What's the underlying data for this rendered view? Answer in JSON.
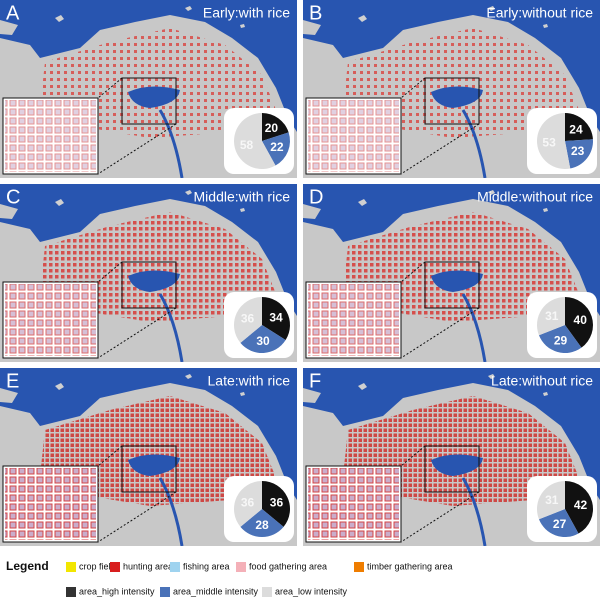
{
  "chart_data": [
    {
      "type": "pie",
      "panel": "A",
      "title": "Early:with rice",
      "values": [
        20,
        22,
        58
      ],
      "colors": [
        "#111111",
        "#4a72b8",
        "#dcdcdc"
      ],
      "density": 0
    },
    {
      "type": "pie",
      "panel": "B",
      "title": "Early:without rice",
      "values": [
        24,
        23,
        53
      ],
      "colors": [
        "#111111",
        "#4a72b8",
        "#dcdcdc"
      ],
      "density": 0
    },
    {
      "type": "pie",
      "panel": "C",
      "title": "Middle:with rice",
      "values": [
        34,
        30,
        36
      ],
      "colors": [
        "#111111",
        "#4a72b8",
        "#dcdcdc"
      ],
      "density": 1
    },
    {
      "type": "pie",
      "panel": "D",
      "title": "Middle:without rice",
      "values": [
        40,
        29,
        31
      ],
      "colors": [
        "#111111",
        "#4a72b8",
        "#dcdcdc"
      ],
      "density": 1
    },
    {
      "type": "pie",
      "panel": "E",
      "title": "Late:with rice",
      "values": [
        36,
        28,
        36
      ],
      "colors": [
        "#111111",
        "#4a72b8",
        "#dcdcdc"
      ],
      "density": 2
    },
    {
      "type": "pie",
      "panel": "F",
      "title": "Late:without rice",
      "values": [
        42,
        27,
        31
      ],
      "colors": [
        "#111111",
        "#4a72b8",
        "#dcdcdc"
      ],
      "density": 2
    }
  ],
  "legend": {
    "title": "Legend",
    "items": [
      {
        "label": "crop field",
        "color": "#f2e600"
      },
      {
        "label": "hunting area",
        "color": "#d81e1e"
      },
      {
        "label": "fishing area",
        "color": "#9fd3ef"
      },
      {
        "label": "food gathering area",
        "color": "#f4b0b8"
      },
      {
        "label": "timber gathering area",
        "color": "#ef7d00"
      },
      {
        "label": "area_high intensity",
        "color": "#333333"
      },
      {
        "label": "area_middle intensity",
        "color": "#4a72b8"
      },
      {
        "label": "area_low intensity",
        "color": "#dcdcdc"
      }
    ]
  }
}
